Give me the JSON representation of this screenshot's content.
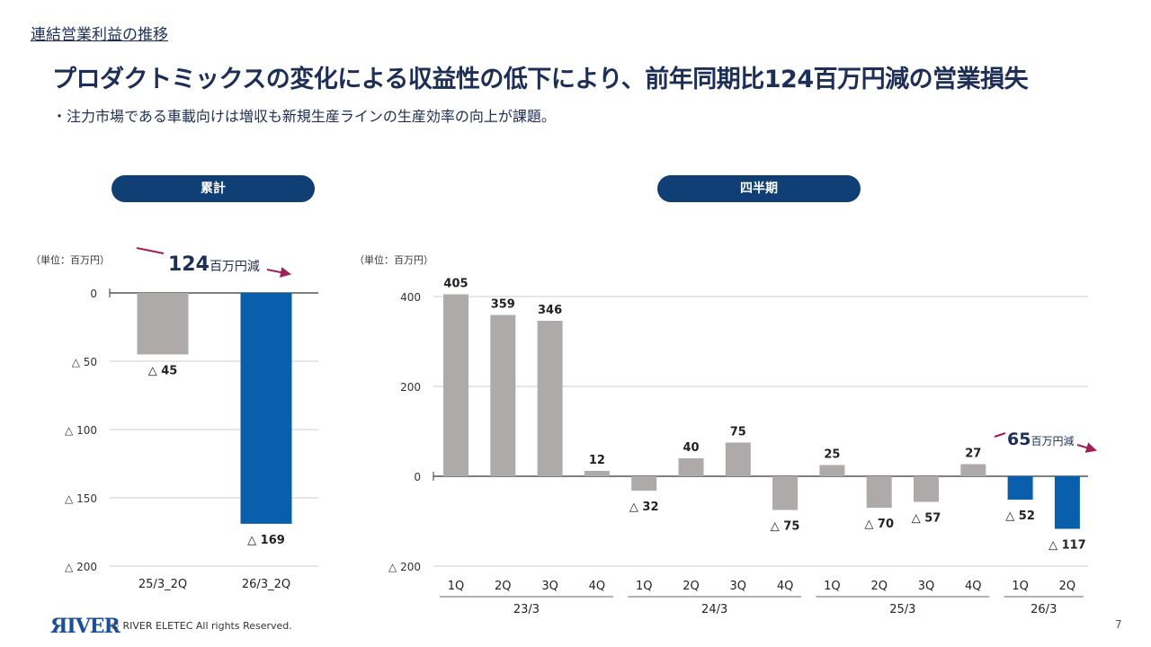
{
  "header": {
    "breadcrumb": "連結営業利益の推移",
    "title": "プロダクトミックスの変化による収益性の低下により、前年同期比124百万円減の営業損失",
    "subtitle": "・注力市場である車載向けは増収も新規生産ラインの生産効率の向上が課題。"
  },
  "panels": {
    "left": "累計",
    "right": "四半期"
  },
  "footer": {
    "logo": "ЯIVER",
    "copyright": "© RIVER ELETEC All rights Reserved.",
    "page": "7"
  },
  "colors": {
    "prior": "#aeaaaa",
    "current": "#0a5fad",
    "arrow": "#a0205a",
    "title": "#1d2f57"
  },
  "chart_data": [
    {
      "type": "bar",
      "unit": "（単位：百万円）",
      "categories": [
        "25/3_2Q",
        "26/3_2Q"
      ],
      "values": [
        -45,
        -169
      ],
      "labels": [
        "△ 45",
        "△ 169"
      ],
      "ylim": [
        -200,
        0
      ],
      "yticks": [
        0,
        -50,
        -100,
        -150,
        -200
      ],
      "ytick_labels": [
        "0",
        "△ 50",
        "△ 100",
        "△ 150",
        "△ 200"
      ],
      "annotation": {
        "num": "124",
        "unit": "百万円減"
      },
      "grid": true
    },
    {
      "type": "bar",
      "unit": "（単位：百万円）",
      "categories": [
        "1Q",
        "2Q",
        "3Q",
        "4Q",
        "1Q",
        "2Q",
        "3Q",
        "4Q",
        "1Q",
        "2Q",
        "3Q",
        "4Q",
        "1Q",
        "2Q"
      ],
      "groups": [
        {
          "label": "23/3",
          "count": 4
        },
        {
          "label": "24/3",
          "count": 4
        },
        {
          "label": "25/3",
          "count": 4
        },
        {
          "label": "26/3",
          "count": 2
        }
      ],
      "values": [
        405,
        359,
        346,
        12,
        -32,
        40,
        75,
        -75,
        25,
        -70,
        -57,
        27,
        -52,
        -117
      ],
      "labels": [
        "405",
        "359",
        "346",
        "12",
        "△ 32",
        "40",
        "75",
        "△ 75",
        "25",
        "△ 70",
        "△ 57",
        "27",
        "△ 52",
        "△ 117"
      ],
      "ylim": [
        -200,
        400
      ],
      "yticks": [
        400,
        200,
        0,
        -200
      ],
      "ytick_labels": [
        "400",
        "200",
        "0",
        "△ 200"
      ],
      "annotation": {
        "num": "65",
        "unit": "百万円減"
      },
      "grid": true
    }
  ]
}
